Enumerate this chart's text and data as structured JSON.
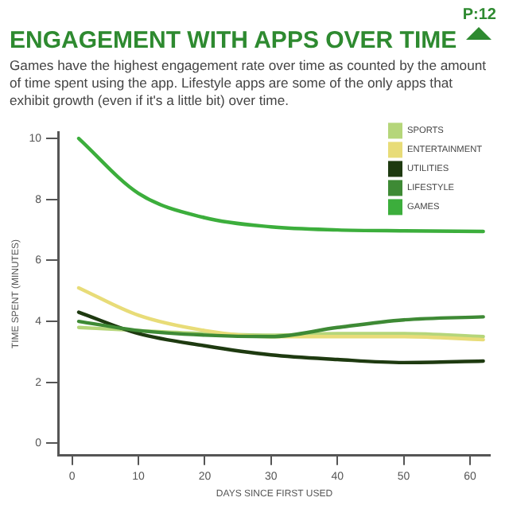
{
  "chart_data": {
    "type": "line",
    "title": "ENGAGEMENT WITH APPS OVER TIME",
    "subtitle": "Games have the highest engagement rate over time as counted by the amount of time spent using the app. Lifestyle apps are some of the only apps that exhibit growth (even if it's a little bit) over time.",
    "annotations": [
      "P:12"
    ],
    "xlabel": "DAYS SINCE FIRST USED",
    "ylabel": "TIME SPENT (MINUTES)",
    "x": [
      1,
      10,
      20,
      30,
      40,
      50,
      62
    ],
    "series": [
      {
        "name": "SPORTS",
        "color": "#b5d67a",
        "values": [
          3.8,
          3.7,
          3.6,
          3.55,
          3.6,
          3.6,
          3.5
        ]
      },
      {
        "name": "ENTERTAINMENT",
        "color": "#e8dc78",
        "values": [
          5.1,
          4.2,
          3.7,
          3.5,
          3.5,
          3.5,
          3.4
        ]
      },
      {
        "name": "UTILITIES",
        "color": "#1e3a10",
        "values": [
          4.3,
          3.6,
          3.2,
          2.9,
          2.75,
          2.65,
          2.7
        ]
      },
      {
        "name": "LIFESTYLE",
        "color": "#3e8a35",
        "values": [
          4.0,
          3.7,
          3.55,
          3.5,
          3.8,
          4.05,
          4.15
        ]
      },
      {
        "name": "GAMES",
        "color": "#3cae3c",
        "values": [
          10.0,
          8.2,
          7.4,
          7.1,
          7.0,
          6.97,
          6.95
        ]
      }
    ],
    "xlim": [
      -2,
      63
    ],
    "xticks": [
      0,
      10,
      20,
      30,
      40,
      50,
      60
    ],
    "ylim": [
      -0.4,
      10.2
    ],
    "yticks": [
      0,
      2,
      4,
      6,
      8,
      10
    ],
    "grid": false,
    "legend": "top right",
    "marker": "none",
    "line_style": "solid"
  }
}
